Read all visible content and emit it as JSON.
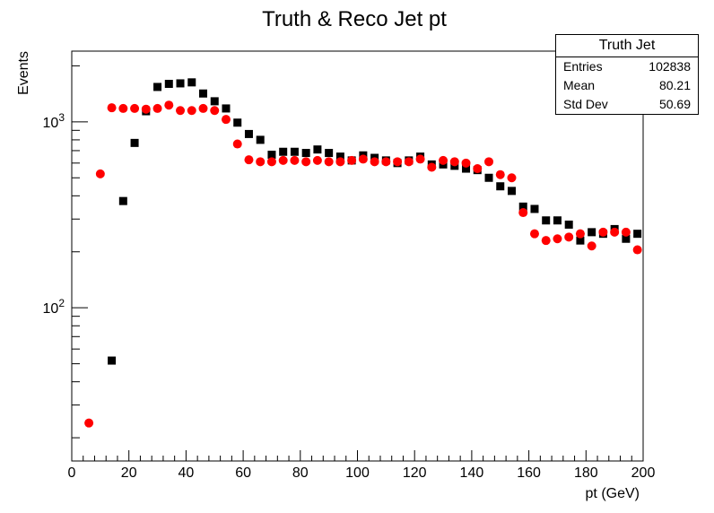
{
  "chart_data": {
    "type": "scatter",
    "title": "Truth & Reco Jet pt",
    "xlabel": "pt (GeV)",
    "ylabel": "Events",
    "xlim": [
      0,
      200
    ],
    "ylim": [
      15,
      2400
    ],
    "yscale": "log",
    "x_ticks": [
      0,
      20,
      40,
      60,
      80,
      100,
      120,
      140,
      160,
      180,
      200
    ],
    "y_tick_labels": [
      {
        "base": "10",
        "exp": "2",
        "value": 100
      },
      {
        "base": "10",
        "exp": "3",
        "value": 1000
      }
    ],
    "grid": false,
    "series": [
      {
        "marker": "square",
        "color": "#000000",
        "x": [
          14,
          18,
          22,
          26,
          30,
          34,
          38,
          42,
          46,
          50,
          54,
          58,
          62,
          66,
          70,
          74,
          78,
          82,
          86,
          90,
          94,
          98,
          102,
          106,
          110,
          114,
          118,
          122,
          126,
          130,
          134,
          138,
          142,
          146,
          150,
          154,
          158,
          162,
          166,
          170,
          174,
          178,
          182,
          186,
          190,
          194,
          198
        ],
        "y": [
          52,
          375,
          770,
          1140,
          1540,
          1600,
          1610,
          1630,
          1420,
          1290,
          1180,
          990,
          860,
          800,
          665,
          690,
          690,
          680,
          710,
          680,
          650,
          620,
          660,
          640,
          620,
          600,
          620,
          650,
          590,
          590,
          580,
          560,
          550,
          500,
          450,
          425,
          350,
          340,
          295,
          295,
          280,
          230,
          255,
          250,
          265,
          235,
          250
        ]
      },
      {
        "marker": "circle",
        "color": "#ff0000",
        "x": [
          6,
          10,
          14,
          18,
          22,
          26,
          30,
          34,
          38,
          42,
          46,
          50,
          54,
          58,
          62,
          66,
          70,
          74,
          78,
          82,
          86,
          90,
          94,
          98,
          102,
          106,
          110,
          114,
          118,
          122,
          126,
          130,
          134,
          138,
          142,
          146,
          150,
          154,
          158,
          162,
          166,
          170,
          174,
          178,
          182,
          186,
          190,
          194,
          198
        ],
        "y": [
          24,
          525,
          1190,
          1180,
          1180,
          1170,
          1180,
          1230,
          1150,
          1150,
          1180,
          1150,
          1030,
          760,
          625,
          610,
          610,
          620,
          620,
          610,
          620,
          610,
          610,
          620,
          630,
          610,
          610,
          610,
          610,
          630,
          570,
          620,
          610,
          600,
          560,
          610,
          520,
          500,
          325,
          250,
          230,
          235,
          240,
          250,
          215,
          255,
          255,
          255,
          205
        ]
      }
    ]
  },
  "stats": {
    "title": "Truth Jet",
    "rows": [
      {
        "label": "Entries",
        "value": "102838"
      },
      {
        "label": "Mean",
        "value": "80.21"
      },
      {
        "label": "Std Dev",
        "value": "50.69"
      }
    ]
  }
}
